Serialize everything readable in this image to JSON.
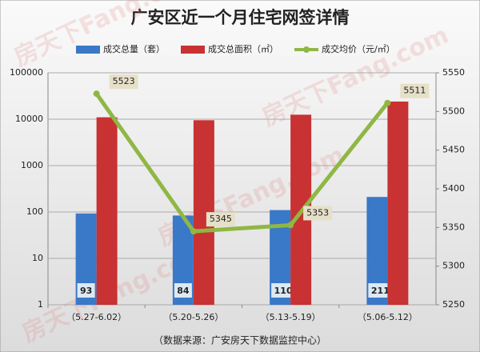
{
  "chart_data": {
    "type": "bar-line",
    "title": "广安区近一个月住宅网签详情",
    "categories": [
      "（5.27-6.02）",
      "（5.20-5.26）",
      "（5.13-5.19）",
      "（5.06-5.12）"
    ],
    "series": [
      {
        "name": "成交总量（套）",
        "color": "#3a78c8",
        "type": "bar",
        "values": [
          93,
          84,
          110,
          211
        ]
      },
      {
        "name": "成交总面积（㎡）",
        "color": "#c83232",
        "type": "bar",
        "values": [
          11000,
          9500,
          12500,
          24000
        ]
      },
      {
        "name": "成交均价（元/㎡）",
        "color": "#8fb744",
        "type": "line",
        "axis": "y2",
        "values": [
          5523,
          5345,
          5353,
          5511
        ]
      }
    ],
    "ylim": [
      1,
      100000
    ],
    "yticks": [
      1,
      10,
      100,
      1000,
      10000,
      100000
    ],
    "log_scale": true,
    "y2lim": [
      5250,
      5550
    ],
    "y2ticks": [
      5250,
      5300,
      5350,
      5400,
      5450,
      5500,
      5550
    ],
    "grid": true,
    "source": "（数据来源：广安房天下数据监控中心）",
    "watermark": "房天下Fang.com"
  }
}
